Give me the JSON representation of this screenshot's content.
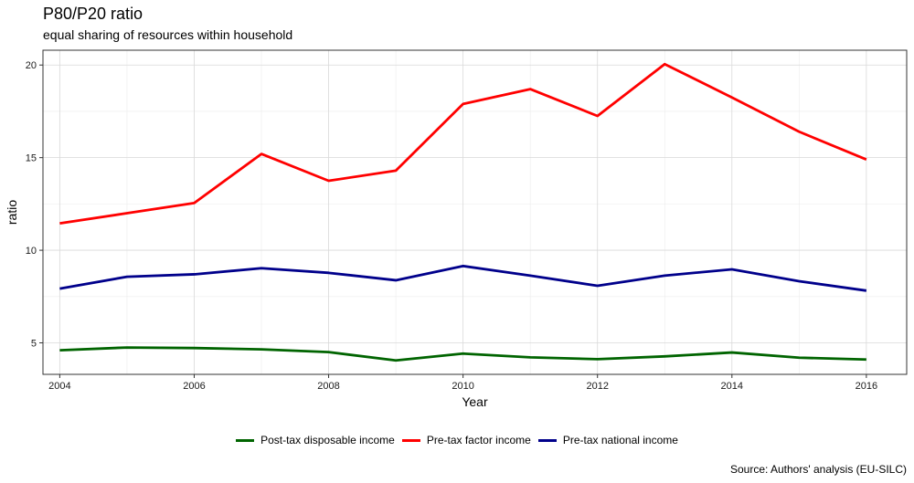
{
  "chart_data": {
    "type": "line",
    "title": "P80/P20 ratio",
    "subtitle": "equal sharing of resources within household",
    "xlabel": "Year",
    "ylabel": "ratio",
    "caption": "Source: Authors' analysis (EU-SILC)",
    "x": [
      2004,
      2005,
      2006,
      2007,
      2008,
      2009,
      2010,
      2011,
      2012,
      2013,
      2014,
      2015,
      2016
    ],
    "xlim": [
      2003.75,
      2016.6
    ],
    "ylim": [
      3.3,
      20.8
    ],
    "x_ticks": [
      "2004",
      "2006",
      "2008",
      "2010",
      "2012",
      "2014",
      "2016"
    ],
    "y_ticks": [
      "5",
      "10",
      "15",
      "20"
    ],
    "grid": true,
    "legend_position": "bottom",
    "series": [
      {
        "name": "Post-tax disposable income",
        "color": "#006400",
        "values": [
          4.6,
          4.75,
          4.72,
          4.65,
          4.5,
          4.05,
          4.42,
          4.22,
          4.12,
          4.27,
          4.48,
          4.2,
          4.1
        ]
      },
      {
        "name": "Pre-tax factor income",
        "color": "#ff0000",
        "values": [
          11.45,
          12.0,
          12.55,
          15.2,
          13.75,
          14.3,
          17.9,
          18.7,
          17.25,
          20.05,
          18.25,
          16.4,
          14.9
        ]
      },
      {
        "name": "Pre-tax national income",
        "color": "#00008b",
        "values": [
          7.93,
          8.57,
          8.7,
          9.03,
          8.78,
          8.38,
          9.15,
          8.63,
          8.08,
          8.63,
          8.97,
          8.33,
          7.82
        ]
      }
    ]
  }
}
